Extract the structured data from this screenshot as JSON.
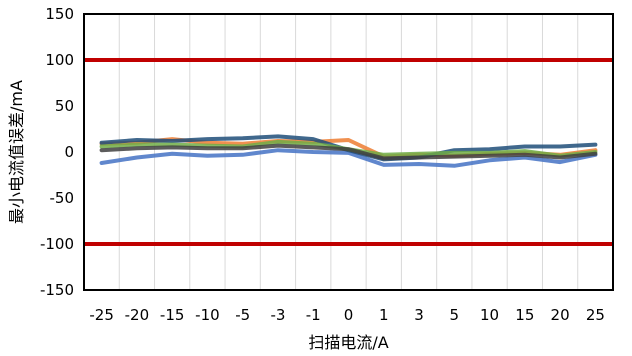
{
  "chart_data": {
    "type": "line",
    "xlabel": "扫描电流/A",
    "ylabel": "最小电流值误差/mA",
    "categories": [
      "-25",
      "-20",
      "-15",
      "-10",
      "-5",
      "-3",
      "-1",
      "0",
      "1",
      "3",
      "5",
      "10",
      "15",
      "20",
      "25"
    ],
    "ylim": [
      -150,
      150
    ],
    "yticks": [
      -150,
      -100,
      -50,
      0,
      50,
      100,
      150
    ],
    "grid": "vertical",
    "legend": "none",
    "series": [
      {
        "color": "#4472C4",
        "values": [
          -12,
          -6,
          -2,
          -4,
          -3,
          2,
          0,
          -1,
          -14,
          -13,
          -15,
          -9,
          -6,
          -11,
          -3
        ]
      },
      {
        "color": "#ED7D31",
        "values": [
          9,
          10,
          14,
          10,
          9,
          12,
          11,
          13,
          -5,
          -3,
          -4,
          -2,
          -1,
          -3,
          2
        ]
      },
      {
        "color": "#1F4E79",
        "values": [
          10,
          13,
          12,
          14,
          15,
          17,
          14,
          2,
          -8,
          -6,
          2,
          3,
          6,
          6,
          8
        ]
      },
      {
        "color": "#70AD47",
        "values": [
          6,
          8,
          8,
          7,
          6,
          11,
          9,
          3,
          -3,
          -2,
          -1,
          -1,
          1,
          -4,
          0
        ]
      },
      {
        "color": "#404040",
        "values": [
          2,
          4,
          5,
          4,
          4,
          7,
          5,
          3,
          -7,
          -6,
          -5,
          -4,
          -3,
          -6,
          -2
        ]
      }
    ],
    "reference_lines": [
      {
        "value": 100,
        "color": "#C00000"
      },
      {
        "value": -100,
        "color": "#C00000"
      }
    ]
  }
}
